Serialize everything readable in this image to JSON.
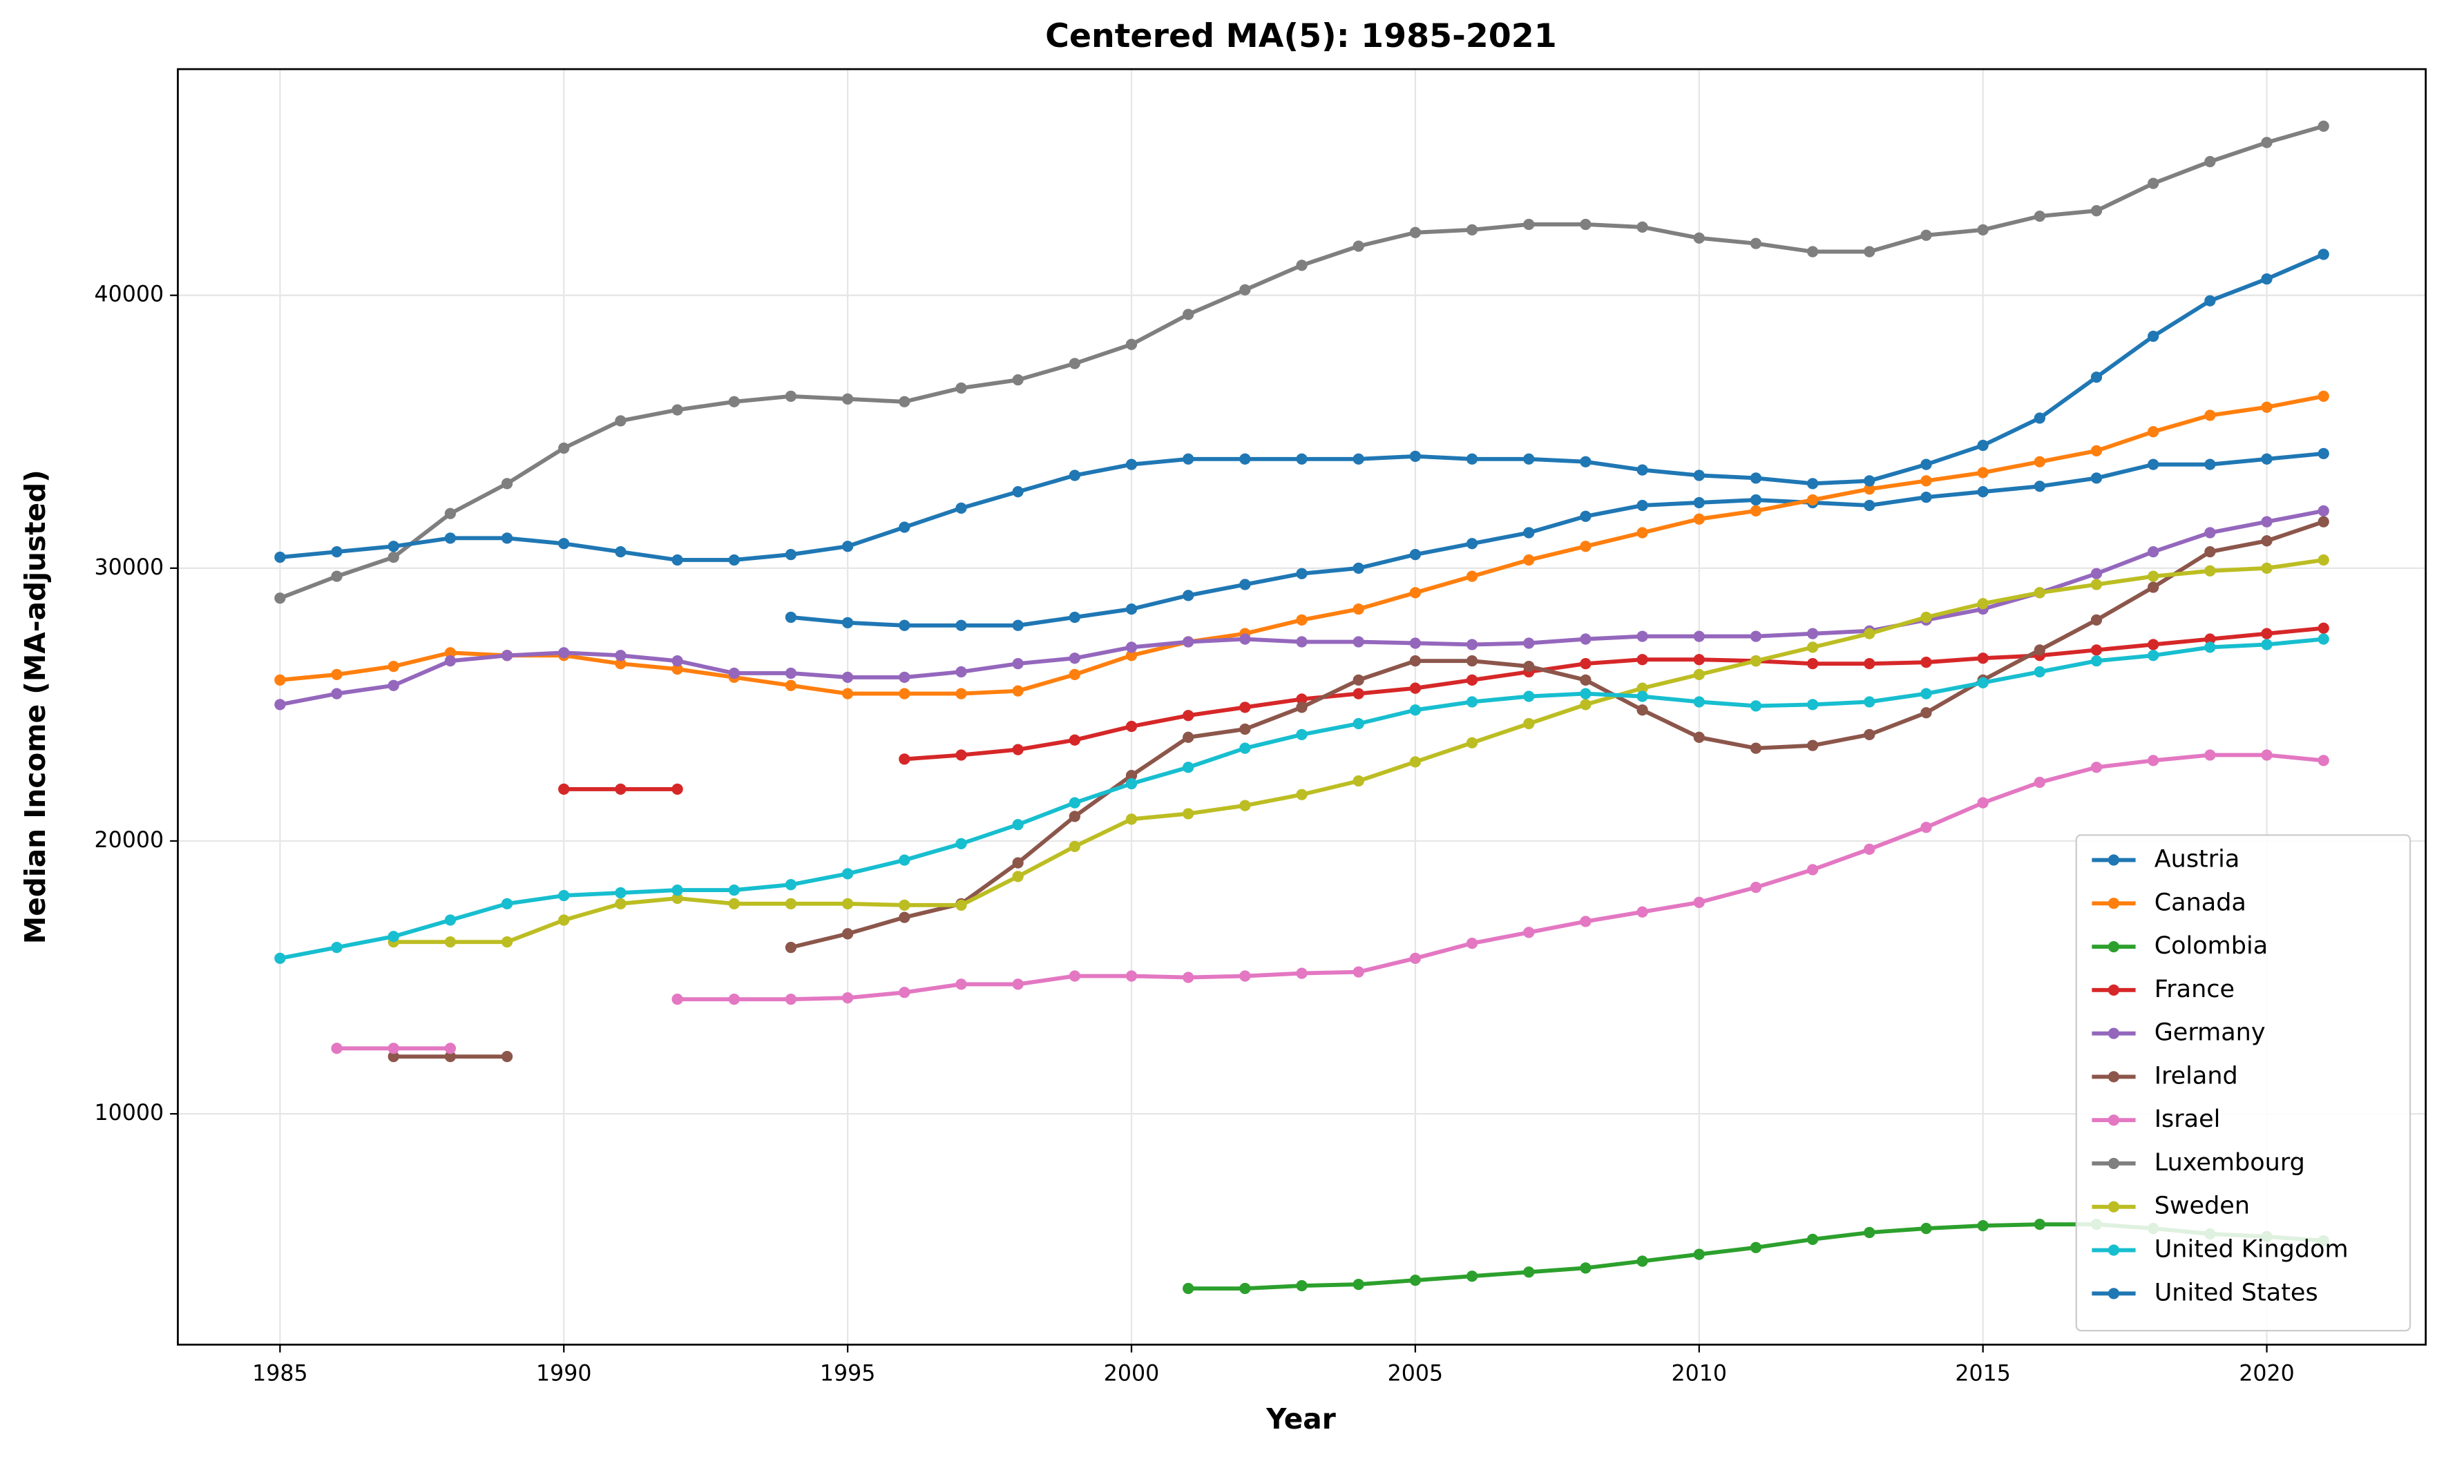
{
  "chart_data": {
    "type": "line",
    "title": "Centered MA(5): 1985-2021",
    "xlabel": "Year",
    "ylabel": "Median Income (MA-adjusted)",
    "x": [
      1985,
      1986,
      1987,
      1988,
      1989,
      1990,
      1991,
      1992,
      1993,
      1994,
      1995,
      1996,
      1997,
      1998,
      1999,
      2000,
      2001,
      2002,
      2003,
      2004,
      2005,
      2006,
      2007,
      2008,
      2009,
      2010,
      2011,
      2012,
      2013,
      2014,
      2015,
      2016,
      2017,
      2018,
      2019,
      2020,
      2021
    ],
    "xlim": [
      1983.2,
      2022.8
    ],
    "ylim": [
      1540,
      48290
    ],
    "xticks": [
      1985,
      1990,
      1995,
      2000,
      2005,
      2010,
      2015,
      2020
    ],
    "yticks": [
      10000,
      20000,
      30000,
      40000
    ],
    "grid": true,
    "legend": "lower right",
    "series": [
      {
        "name": "Austria",
        "color": "#1f77b4",
        "values": [
          null,
          null,
          null,
          null,
          null,
          null,
          null,
          null,
          null,
          28200,
          28000,
          27900,
          27900,
          27900,
          28200,
          28500,
          29000,
          29400,
          29800,
          30000,
          30500,
          30900,
          31300,
          31900,
          32300,
          32400,
          32500,
          32400,
          32300,
          32600,
          32800,
          33000,
          33300,
          33800,
          33800,
          34000,
          34200
        ]
      },
      {
        "name": "Canada",
        "color": "#ff7f0e",
        "values": [
          25900,
          26100,
          26400,
          26900,
          26800,
          26800,
          26500,
          26300,
          26000,
          25700,
          25400,
          25400,
          25400,
          25500,
          26100,
          26800,
          27300,
          27600,
          28100,
          28500,
          29100,
          29700,
          30300,
          30800,
          31300,
          31800,
          32100,
          32500,
          32900,
          33200,
          33500,
          33900,
          34300,
          35000,
          35600,
          35900,
          36300
        ]
      },
      {
        "name": "Colombia",
        "color": "#2ca02c",
        "values": [
          null,
          null,
          null,
          null,
          null,
          null,
          null,
          null,
          null,
          null,
          null,
          null,
          null,
          null,
          null,
          null,
          3600,
          3600,
          3700,
          3750,
          3900,
          4050,
          4200,
          4350,
          4600,
          4850,
          5100,
          5400,
          5650,
          5800,
          5900,
          5950,
          5950,
          5800,
          5600,
          5500,
          5350
        ]
      },
      {
        "name": "France",
        "color": "#d62728",
        "values": [
          null,
          null,
          null,
          null,
          null,
          21900,
          21900,
          21900,
          null,
          null,
          null,
          23000,
          23150,
          23350,
          23700,
          24200,
          24600,
          24900,
          25200,
          25400,
          25600,
          25900,
          26200,
          26500,
          26650,
          26650,
          26600,
          26500,
          26500,
          26550,
          26700,
          26800,
          27000,
          27200,
          27400,
          27600,
          27800
        ]
      },
      {
        "name": "Germany",
        "color": "#9467bd",
        "values": [
          25000,
          25400,
          25700,
          26600,
          26800,
          26900,
          26800,
          26600,
          26150,
          26150,
          26000,
          26000,
          26200,
          26500,
          26700,
          27100,
          27300,
          27400,
          27300,
          27300,
          27250,
          27200,
          27250,
          27400,
          27500,
          27500,
          27500,
          27600,
          27700,
          28100,
          28500,
          29100,
          29800,
          30600,
          31300,
          31700,
          32100
        ]
      },
      {
        "name": "Ireland",
        "color": "#8c564b",
        "values": [
          null,
          null,
          12100,
          12100,
          12100,
          null,
          null,
          null,
          null,
          16100,
          16600,
          17200,
          17700,
          19200,
          20900,
          22400,
          23800,
          24100,
          24900,
          25900,
          26600,
          26600,
          26400,
          25900,
          24800,
          23800,
          23400,
          23500,
          23900,
          24700,
          25900,
          27000,
          28100,
          29300,
          30600,
          31000,
          31700
        ]
      },
      {
        "name": "Israel",
        "color": "#e377c2",
        "values": [
          null,
          12400,
          12400,
          12400,
          null,
          null,
          null,
          14200,
          14200,
          14200,
          14250,
          14450,
          14750,
          14750,
          15050,
          15050,
          15000,
          15050,
          15150,
          15200,
          15700,
          16250,
          16650,
          17050,
          17400,
          17750,
          18300,
          18950,
          19700,
          20500,
          21400,
          22150,
          22700,
          22950,
          23150,
          23150,
          22950
        ]
      },
      {
        "name": "Luxembourg",
        "color": "#7f7f7f",
        "values": [
          28900,
          29700,
          30400,
          32000,
          33100,
          34400,
          35400,
          35800,
          36100,
          36300,
          36200,
          36100,
          36600,
          36900,
          37500,
          38200,
          39300,
          40200,
          41100,
          41800,
          42300,
          42400,
          42600,
          42600,
          42500,
          42100,
          41900,
          41600,
          41600,
          42200,
          42400,
          42900,
          43100,
          44100,
          44900,
          45600,
          46200
        ]
      },
      {
        "name": "Sweden",
        "color": "#bcbd22",
        "values": [
          null,
          null,
          16300,
          16300,
          16300,
          17100,
          17700,
          17900,
          17700,
          17700,
          17700,
          17650,
          17650,
          18700,
          19800,
          20800,
          21000,
          21300,
          21700,
          22200,
          22900,
          23600,
          24300,
          25000,
          25600,
          26100,
          26600,
          27100,
          27600,
          28200,
          28700,
          29100,
          29400,
          29700,
          29900,
          30000,
          30300
        ]
      },
      {
        "name": "United Kingdom",
        "color": "#17becf",
        "values": [
          15700,
          16100,
          16500,
          17100,
          17700,
          18000,
          18100,
          18200,
          18200,
          18400,
          18800,
          19300,
          19900,
          20600,
          21400,
          22100,
          22700,
          23400,
          23900,
          24300,
          24800,
          25100,
          25300,
          25400,
          25300,
          25100,
          24950,
          25000,
          25100,
          25400,
          25800,
          26200,
          26600,
          26800,
          27100,
          27200,
          27400
        ]
      },
      {
        "name": "United States",
        "color": "#1f77b4",
        "values": [
          30400,
          30600,
          30800,
          31100,
          31100,
          30900,
          30600,
          30300,
          30300,
          30500,
          30800,
          31500,
          32200,
          32800,
          33400,
          33800,
          34000,
          34000,
          34000,
          34000,
          34100,
          34000,
          34000,
          33900,
          33600,
          33400,
          33300,
          33100,
          33200,
          33800,
          34500,
          35500,
          37000,
          38500,
          39800,
          40600,
          41500
        ]
      }
    ]
  }
}
